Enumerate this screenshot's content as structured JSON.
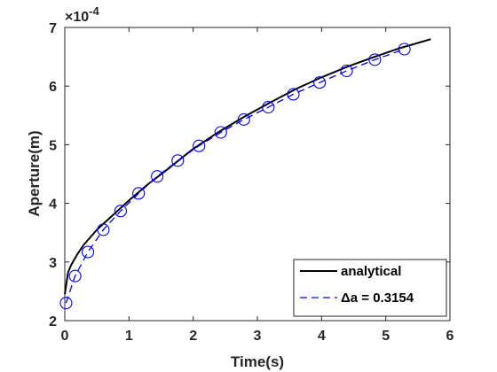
{
  "chart_data": {
    "type": "line",
    "xlabel": "Time(s)",
    "ylabel": "Aperture(m)",
    "y_multiplier_label": "×10",
    "y_multiplier_exponent": "-4",
    "xlim": [
      0,
      6
    ],
    "ylim": [
      2,
      7
    ],
    "x_ticks": [
      "0",
      "1",
      "2",
      "3",
      "4",
      "5",
      "6"
    ],
    "y_ticks": [
      "2",
      "3",
      "4",
      "5",
      "6",
      "7"
    ],
    "grid": false,
    "legend_position": "bottom-right",
    "series": [
      {
        "name": "analytical",
        "style": "solid",
        "color": "#000000",
        "x": [
          0.0,
          0.05,
          0.1,
          0.2,
          0.3,
          0.5,
          0.7,
          1.0,
          1.3,
          1.6,
          2.0,
          2.4,
          2.8,
          3.2,
          3.6,
          4.0,
          4.4,
          4.8,
          5.2,
          5.7
        ],
        "y": [
          2.45,
          2.82,
          2.95,
          3.14,
          3.3,
          3.55,
          3.75,
          4.05,
          4.33,
          4.58,
          4.93,
          5.22,
          5.48,
          5.72,
          5.95,
          6.15,
          6.33,
          6.49,
          6.64,
          6.8
        ]
      },
      {
        "name": "Δa = 0.3154",
        "style": "dashed-circles",
        "color": "#0000ff",
        "x": [
          0.02,
          0.16,
          0.36,
          0.6,
          0.87,
          1.15,
          1.44,
          1.76,
          2.09,
          2.43,
          2.79,
          3.17,
          3.56,
          3.97,
          4.39,
          4.83,
          5.29
        ],
        "y": [
          2.3,
          2.76,
          3.17,
          3.55,
          3.87,
          4.17,
          4.46,
          4.73,
          4.98,
          5.21,
          5.43,
          5.64,
          5.86,
          6.06,
          6.26,
          6.45,
          6.63
        ]
      }
    ]
  }
}
